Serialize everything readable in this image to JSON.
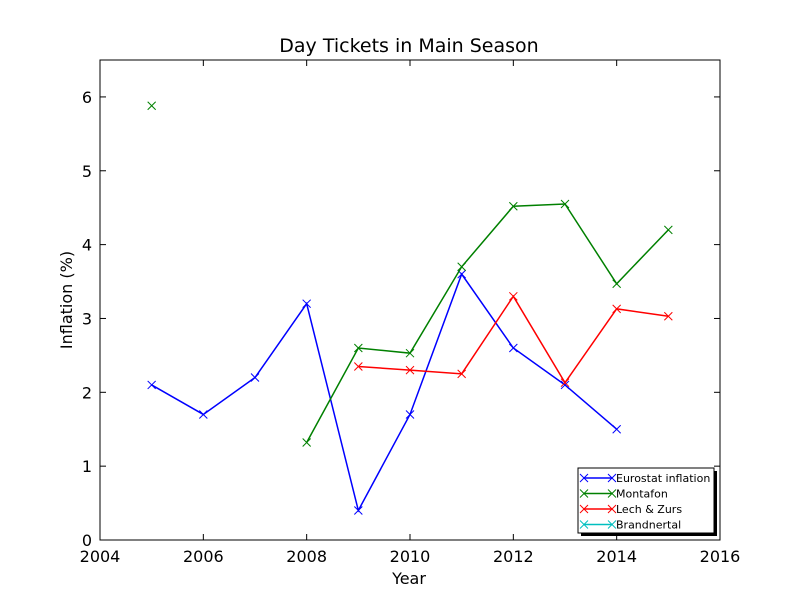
{
  "chart_data": {
    "type": "line",
    "title": "Day Tickets in Main Season",
    "xlabel": "Year",
    "ylabel": "Inflation (%)",
    "xlim": [
      2004,
      2016
    ],
    "ylim": [
      0,
      6.5
    ],
    "xticks": [
      2004,
      2006,
      2008,
      2010,
      2012,
      2014,
      2016
    ],
    "yticks": [
      0,
      1,
      2,
      3,
      4,
      5,
      6
    ],
    "grid": false,
    "legend_position": "lower-right",
    "marker": "x",
    "series": [
      {
        "name": "Eurostat inflation",
        "color": "#0000ff",
        "points": [
          [
            2005,
            2.1
          ],
          [
            2006,
            1.7
          ],
          [
            2007,
            2.2
          ],
          [
            2008,
            3.2
          ],
          [
            2009,
            0.4
          ],
          [
            2010,
            1.7
          ],
          [
            2011,
            3.6
          ],
          [
            2012,
            2.6
          ],
          [
            2013,
            2.1
          ],
          [
            2014,
            1.5
          ]
        ]
      },
      {
        "name": "Montafon",
        "color": "#008000",
        "points": [
          [
            2005,
            5.88
          ],
          [
            2006,
            null
          ],
          [
            2007,
            null
          ],
          [
            2008,
            1.32
          ],
          [
            2009,
            2.6
          ],
          [
            2010,
            2.53
          ],
          [
            2011,
            3.7
          ],
          [
            2012,
            4.52
          ],
          [
            2013,
            4.55
          ],
          [
            2014,
            3.47
          ],
          [
            2015,
            4.2
          ]
        ]
      },
      {
        "name": "Lech & Zurs",
        "color": "#ff0000",
        "points": [
          [
            2009,
            2.35
          ],
          [
            2010,
            2.3
          ],
          [
            2011,
            2.25
          ],
          [
            2012,
            3.3
          ],
          [
            2013,
            2.13
          ],
          [
            2014,
            3.13
          ],
          [
            2015,
            3.03
          ]
        ]
      },
      {
        "name": "Brandnertal",
        "color": "#00bfbf",
        "points": []
      }
    ]
  }
}
